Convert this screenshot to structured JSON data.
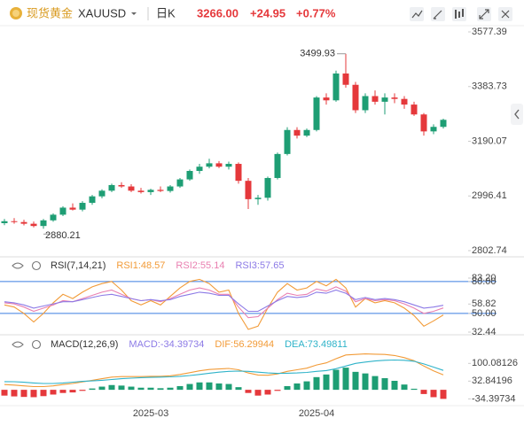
{
  "header": {
    "name": "现货黄金",
    "symbol": "XAUUSD",
    "period": "日K",
    "price": "3266.00",
    "change": "+24.95",
    "change_pct": "+0.77%"
  },
  "chart_data": [
    {
      "type": "candlestick",
      "up_color": "#1e9e74",
      "down_color": "#e5383b",
      "open": [
        2900,
        2907,
        2904,
        2898,
        2890,
        2910,
        2930,
        2955,
        2948,
        2972,
        2995,
        3015,
        3035,
        3030,
        3015,
        3010,
        3018,
        3014,
        3030,
        3055,
        3085,
        3100,
        3112,
        3100,
        3110,
        3050,
        2985,
        2990,
        3060,
        3145,
        3230,
        3210,
        3230,
        3345,
        3335,
        3430,
        3390,
        3300,
        3350,
        3330,
        3345,
        3340,
        3320,
        3285,
        3225,
        3241.05
      ],
      "high": [
        2915,
        2918,
        2912,
        2906,
        2915,
        2935,
        2960,
        2970,
        2978,
        3000,
        3020,
        3040,
        3045,
        3038,
        3025,
        3022,
        3030,
        3035,
        3060,
        3090,
        3110,
        3128,
        3120,
        3118,
        3115,
        3060,
        3000,
        3065,
        3150,
        3240,
        3240,
        3235,
        3350,
        3360,
        3440,
        3499.93,
        3400,
        3360,
        3370,
        3360,
        3360,
        3350,
        3330,
        3290,
        3250,
        3270
      ],
      "low": [
        2893,
        2898,
        2892,
        2885,
        2880.21,
        2905,
        2925,
        2945,
        2942,
        2965,
        2988,
        3010,
        3025,
        3010,
        3005,
        3000,
        3010,
        3008,
        3025,
        3050,
        3075,
        3094,
        3095,
        3090,
        3040,
        2950,
        2965,
        2980,
        3055,
        3140,
        3200,
        3205,
        3225,
        3320,
        3330,
        3380,
        3290,
        3290,
        3320,
        3285,
        3325,
        3305,
        3280,
        3210,
        3215,
        3235
      ],
      "close": [
        2907,
        2904,
        2898,
        2890,
        2910,
        2930,
        2955,
        2948,
        2972,
        2995,
        3015,
        3035,
        3030,
        3015,
        3010,
        3018,
        3014,
        3030,
        3055,
        3085,
        3100,
        3112,
        3100,
        3110,
        3050,
        2985,
        2990,
        3060,
        3145,
        3230,
        3210,
        3230,
        3345,
        3335,
        3430,
        3390,
        3300,
        3350,
        3330,
        3345,
        3340,
        3320,
        3285,
        3225,
        3241.05,
        3266
      ],
      "ylim": [
        2802.74,
        3577.39
      ],
      "yticks": [
        3577.39,
        3383.73,
        3190.07,
        2996.41,
        2802.74
      ]
    },
    {
      "type": "line",
      "title": "RSI(7,14,21)",
      "series": [
        {
          "name": "RSI1:48.57",
          "color": "#f29b38",
          "values": [
            58,
            56,
            50,
            42,
            50,
            60,
            68,
            64,
            70,
            75,
            78,
            80,
            72,
            62,
            58,
            62,
            58,
            66,
            74,
            80,
            82,
            78,
            70,
            72,
            50,
            35,
            38,
            55,
            70,
            78,
            72,
            74,
            80,
            76,
            82,
            74,
            56,
            64,
            60,
            62,
            60,
            55,
            48,
            38,
            43,
            48.57
          ]
        },
        {
          "name": "RSI2:55.14",
          "color": "#e97fb0",
          "values": [
            60,
            59,
            56,
            52,
            55,
            58,
            62,
            61,
            64,
            67,
            70,
            72,
            68,
            64,
            62,
            63,
            61,
            64,
            68,
            72,
            74,
            72,
            68,
            68,
            56,
            46,
            47,
            55,
            63,
            69,
            67,
            68,
            73,
            71,
            75,
            71,
            61,
            64,
            62,
            63,
            62,
            59,
            55,
            50,
            52,
            55.14
          ]
        },
        {
          "name": "RSI3:57.65",
          "color": "#8c7ae6",
          "values": [
            61,
            60,
            58,
            55,
            57,
            59,
            61,
            61,
            63,
            65,
            67,
            68,
            66,
            64,
            62,
            63,
            62,
            63,
            66,
            68,
            70,
            69,
            67,
            67,
            59,
            52,
            52,
            57,
            62,
            66,
            65,
            66,
            70,
            69,
            72,
            69,
            63,
            65,
            63,
            64,
            63,
            61,
            58,
            55,
            56,
            57.65
          ]
        }
      ],
      "ylim": [
        32.44,
        83.2
      ],
      "yticks": [
        {
          "value": 83.2,
          "label": "83.20"
        },
        {
          "value": 80,
          "label": "80.00"
        },
        58.82,
        {
          "value": 50,
          "label": "50.00"
        },
        32.44
      ],
      "hlines": [
        80,
        50
      ],
      "hline_color": "#3b7de0"
    },
    {
      "type": "macd",
      "title": "MACD(12,26,9)",
      "categories": [
        null,
        null,
        null,
        null,
        null,
        null,
        null,
        null,
        null,
        null,
        null,
        null,
        null,
        null,
        null,
        "2025-03",
        null,
        null,
        null,
        null,
        null,
        null,
        null,
        null,
        null,
        null,
        null,
        null,
        null,
        null,
        null,
        null,
        "2025-04",
        null,
        null,
        null,
        null,
        null,
        null,
        null,
        null,
        null,
        null,
        null,
        null,
        null
      ],
      "up_color": "#1e9e74",
      "down_color": "#e5383b",
      "series": [
        {
          "name": "MACD:-34.39734",
          "type": "bar",
          "color": "#8c7ae6",
          "values": [
            -22,
            -25,
            -27,
            -28,
            -24,
            -18,
            -12,
            -10,
            -4,
            5,
            12,
            18,
            16,
            12,
            8,
            8,
            6,
            8,
            14,
            22,
            28,
            28,
            24,
            22,
            10,
            -12,
            -22,
            -18,
            -4,
            14,
            24,
            32,
            48,
            58,
            76,
            84,
            68,
            62,
            52,
            44,
            34,
            20,
            4,
            -16,
            -28,
            -34.39734
          ]
        },
        {
          "name": "DIF:56.29944",
          "type": "line",
          "color": "#f29b38",
          "values": [
            20,
            18,
            15,
            12,
            12,
            15,
            20,
            24,
            30,
            36,
            42,
            48,
            50,
            50,
            50,
            51,
            51,
            53,
            58,
            65,
            72,
            77,
            79,
            81,
            76,
            64,
            56,
            55,
            60,
            70,
            76,
            82,
            94,
            102,
            118,
            132,
            134,
            136,
            135,
            134,
            130,
            122,
            110,
            90,
            72,
            56.29944
          ]
        },
        {
          "name": "DEA:73.49811",
          "type": "line",
          "color": "#2fb3c9",
          "values": [
            31,
            30.5,
            28.5,
            26,
            24,
            24,
            26,
            29,
            32,
            33.5,
            36,
            39,
            42,
            44,
            46,
            47,
            48,
            49,
            51,
            54,
            58,
            63,
            67,
            70,
            71,
            70,
            67,
            64,
            62,
            63,
            64,
            66,
            70,
            73,
            80,
            90,
            100,
            105,
            109,
            112,
            113,
            112,
            108,
            98,
            86,
            73.49811
          ]
        }
      ],
      "ylim": [
        -60,
        185
      ],
      "yticks": [
        100.08126,
        32.84196,
        -34.39734
      ]
    }
  ]
}
